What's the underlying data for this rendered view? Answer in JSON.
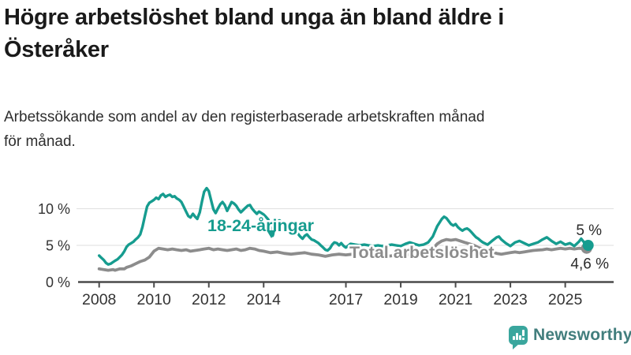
{
  "header": {
    "title_line1": "Högre arbetslöshet bland unga än bland äldre i",
    "title_line2": "Österåker",
    "subtitle_line1": "Arbetssökande som andel av den registerbaserade arbetskraften månad",
    "subtitle_line2": "för månad."
  },
  "footer": {
    "brand": "Newsworthy"
  },
  "colors": {
    "youth": "#169c8f",
    "total": "#8c8c8c",
    "axis": "#4a4a4a",
    "grid": "#e3e3e3",
    "tick_text": "#333333",
    "brand_icon": "#3aa69d",
    "brand_text": "#427e7d"
  },
  "chart_data": {
    "type": "line",
    "title": "Högre arbetslöshet bland unga än bland äldre i Österåker",
    "subtitle": "Arbetssökande som andel av den registerbaserade arbetskraften månad för månad.",
    "unit": "%",
    "grid": "horizontal-only",
    "legend_position": "inline-labels",
    "xlim": [
      2008,
      2025.9
    ],
    "ylim": [
      0,
      13.5
    ],
    "x_ticks": [
      2008,
      2010,
      2012,
      2014,
      2017,
      2019,
      2021,
      2023,
      2025
    ],
    "y_ticks": [
      {
        "value": 0,
        "label": "0 %"
      },
      {
        "value": 5,
        "label": "5 %"
      },
      {
        "value": 10,
        "label": "10 %"
      }
    ],
    "series": [
      {
        "name": "18-24-åringar",
        "color": "#169c8f",
        "end_label": "5 %",
        "points": [
          [
            2008.0,
            3.6
          ],
          [
            2008.08,
            3.3
          ],
          [
            2008.17,
            3.0
          ],
          [
            2008.25,
            2.6
          ],
          [
            2008.33,
            2.4
          ],
          [
            2008.42,
            2.5
          ],
          [
            2008.5,
            2.7
          ],
          [
            2008.58,
            2.9
          ],
          [
            2008.67,
            3.1
          ],
          [
            2008.75,
            3.4
          ],
          [
            2008.83,
            3.7
          ],
          [
            2008.92,
            4.2
          ],
          [
            2009.0,
            4.8
          ],
          [
            2009.08,
            5.1
          ],
          [
            2009.17,
            5.3
          ],
          [
            2009.25,
            5.5
          ],
          [
            2009.33,
            5.8
          ],
          [
            2009.42,
            6.1
          ],
          [
            2009.5,
            6.5
          ],
          [
            2009.58,
            7.5
          ],
          [
            2009.67,
            9.0
          ],
          [
            2009.75,
            10.3
          ],
          [
            2009.83,
            10.8
          ],
          [
            2009.92,
            11.0
          ],
          [
            2010.0,
            11.2
          ],
          [
            2010.08,
            11.5
          ],
          [
            2010.17,
            11.3
          ],
          [
            2010.25,
            11.8
          ],
          [
            2010.33,
            12.0
          ],
          [
            2010.42,
            11.6
          ],
          [
            2010.5,
            11.8
          ],
          [
            2010.58,
            11.9
          ],
          [
            2010.67,
            11.6
          ],
          [
            2010.75,
            11.7
          ],
          [
            2010.83,
            11.4
          ],
          [
            2010.92,
            11.2
          ],
          [
            2011.0,
            10.9
          ],
          [
            2011.08,
            10.3
          ],
          [
            2011.17,
            9.6
          ],
          [
            2011.25,
            9.0
          ],
          [
            2011.33,
            8.8
          ],
          [
            2011.42,
            9.3
          ],
          [
            2011.5,
            8.9
          ],
          [
            2011.58,
            8.6
          ],
          [
            2011.67,
            9.5
          ],
          [
            2011.75,
            11.0
          ],
          [
            2011.83,
            12.3
          ],
          [
            2011.92,
            12.8
          ],
          [
            2012.0,
            12.4
          ],
          [
            2012.08,
            11.2
          ],
          [
            2012.17,
            9.9
          ],
          [
            2012.25,
            9.4
          ],
          [
            2012.33,
            10.0
          ],
          [
            2012.42,
            10.6
          ],
          [
            2012.5,
            10.9
          ],
          [
            2012.58,
            10.5
          ],
          [
            2012.67,
            9.7
          ],
          [
            2012.75,
            10.3
          ],
          [
            2012.83,
            10.9
          ],
          [
            2012.92,
            10.7
          ],
          [
            2013.0,
            10.4
          ],
          [
            2013.08,
            9.9
          ],
          [
            2013.17,
            9.5
          ],
          [
            2013.25,
            9.8
          ],
          [
            2013.33,
            10.1
          ],
          [
            2013.42,
            10.4
          ],
          [
            2013.5,
            10.5
          ],
          [
            2013.58,
            10.0
          ],
          [
            2013.67,
            9.6
          ],
          [
            2013.75,
            9.3
          ],
          [
            2013.83,
            9.6
          ],
          [
            2013.92,
            9.4
          ],
          [
            2014.0,
            9.2
          ],
          [
            2014.08,
            8.9
          ],
          [
            2014.17,
            8.5
          ],
          [
            2014.25,
            7.4
          ],
          [
            2014.33,
            6.3
          ],
          [
            2014.42,
            7.5
          ],
          [
            2014.5,
            8.3
          ],
          [
            2014.58,
            8.4
          ],
          [
            2014.67,
            8.1
          ],
          [
            2014.75,
            7.8
          ],
          [
            2014.83,
            7.5
          ],
          [
            2014.92,
            7.3
          ],
          [
            2015.0,
            7.1
          ],
          [
            2015.08,
            6.9
          ],
          [
            2015.17,
            6.7
          ],
          [
            2015.25,
            6.6
          ],
          [
            2015.33,
            6.2
          ],
          [
            2015.42,
            5.9
          ],
          [
            2015.5,
            6.3
          ],
          [
            2015.58,
            6.5
          ],
          [
            2015.67,
            6.1
          ],
          [
            2015.75,
            5.8
          ],
          [
            2015.83,
            5.7
          ],
          [
            2015.92,
            5.5
          ],
          [
            2016.0,
            5.3
          ],
          [
            2016.08,
            5.0
          ],
          [
            2016.17,
            4.7
          ],
          [
            2016.25,
            4.4
          ],
          [
            2016.33,
            4.3
          ],
          [
            2016.42,
            4.6
          ],
          [
            2016.5,
            5.1
          ],
          [
            2016.58,
            5.4
          ],
          [
            2016.67,
            5.3
          ],
          [
            2016.75,
            5.0
          ],
          [
            2016.83,
            5.3
          ],
          [
            2016.92,
            4.9
          ],
          [
            2017.0,
            4.7
          ],
          [
            2017.17,
            5.2
          ],
          [
            2017.33,
            5.1
          ],
          [
            2017.5,
            5.0
          ],
          [
            2017.67,
            5.1
          ],
          [
            2017.83,
            5.0
          ],
          [
            2018.0,
            4.9
          ],
          [
            2018.17,
            5.0
          ],
          [
            2018.33,
            4.9
          ],
          [
            2018.5,
            5.0
          ],
          [
            2018.67,
            5.1
          ],
          [
            2018.83,
            5.0
          ],
          [
            2019.0,
            4.9
          ],
          [
            2019.17,
            5.2
          ],
          [
            2019.33,
            5.4
          ],
          [
            2019.5,
            5.2
          ],
          [
            2019.67,
            5.0
          ],
          [
            2019.83,
            5.1
          ],
          [
            2020.0,
            5.4
          ],
          [
            2020.17,
            6.2
          ],
          [
            2020.33,
            7.6
          ],
          [
            2020.5,
            8.6
          ],
          [
            2020.58,
            8.9
          ],
          [
            2020.67,
            8.7
          ],
          [
            2020.75,
            8.3
          ],
          [
            2020.83,
            7.9
          ],
          [
            2020.92,
            7.7
          ],
          [
            2021.0,
            7.9
          ],
          [
            2021.08,
            7.5
          ],
          [
            2021.17,
            7.2
          ],
          [
            2021.25,
            7.0
          ],
          [
            2021.33,
            7.2
          ],
          [
            2021.42,
            7.3
          ],
          [
            2021.5,
            7.1
          ],
          [
            2021.58,
            6.8
          ],
          [
            2021.67,
            6.4
          ],
          [
            2021.75,
            6.1
          ],
          [
            2021.83,
            5.9
          ],
          [
            2021.92,
            5.6
          ],
          [
            2022.0,
            5.4
          ],
          [
            2022.17,
            5.1
          ],
          [
            2022.33,
            5.6
          ],
          [
            2022.5,
            6.1
          ],
          [
            2022.58,
            6.2
          ],
          [
            2022.67,
            5.8
          ],
          [
            2022.83,
            5.3
          ],
          [
            2023.0,
            4.9
          ],
          [
            2023.17,
            5.4
          ],
          [
            2023.33,
            5.6
          ],
          [
            2023.5,
            5.3
          ],
          [
            2023.67,
            5.0
          ],
          [
            2023.83,
            5.2
          ],
          [
            2024.0,
            5.4
          ],
          [
            2024.17,
            5.8
          ],
          [
            2024.33,
            6.1
          ],
          [
            2024.5,
            5.6
          ],
          [
            2024.67,
            5.2
          ],
          [
            2024.83,
            5.5
          ],
          [
            2025.0,
            5.1
          ],
          [
            2025.17,
            5.3
          ],
          [
            2025.33,
            4.9
          ],
          [
            2025.5,
            5.5
          ],
          [
            2025.58,
            5.9
          ],
          [
            2025.67,
            5.5
          ],
          [
            2025.75,
            5.0
          ]
        ]
      },
      {
        "name": "Total arbetslöshet",
        "color": "#8c8c8c",
        "end_label": "4,6 %",
        "points": [
          [
            2008.0,
            1.8
          ],
          [
            2008.17,
            1.7
          ],
          [
            2008.33,
            1.6
          ],
          [
            2008.5,
            1.7
          ],
          [
            2008.58,
            1.6
          ],
          [
            2008.75,
            1.8
          ],
          [
            2008.92,
            1.8
          ],
          [
            2009.0,
            2.0
          ],
          [
            2009.17,
            2.2
          ],
          [
            2009.33,
            2.5
          ],
          [
            2009.5,
            2.8
          ],
          [
            2009.67,
            3.0
          ],
          [
            2009.83,
            3.4
          ],
          [
            2010.0,
            4.2
          ],
          [
            2010.17,
            4.6
          ],
          [
            2010.33,
            4.5
          ],
          [
            2010.5,
            4.4
          ],
          [
            2010.67,
            4.5
          ],
          [
            2010.83,
            4.4
          ],
          [
            2011.0,
            4.3
          ],
          [
            2011.17,
            4.4
          ],
          [
            2011.33,
            4.2
          ],
          [
            2011.5,
            4.3
          ],
          [
            2011.67,
            4.4
          ],
          [
            2011.83,
            4.5
          ],
          [
            2012.0,
            4.6
          ],
          [
            2012.17,
            4.4
          ],
          [
            2012.33,
            4.5
          ],
          [
            2012.5,
            4.4
          ],
          [
            2012.67,
            4.3
          ],
          [
            2012.83,
            4.4
          ],
          [
            2013.0,
            4.5
          ],
          [
            2013.17,
            4.3
          ],
          [
            2013.33,
            4.4
          ],
          [
            2013.5,
            4.6
          ],
          [
            2013.67,
            4.5
          ],
          [
            2013.83,
            4.3
          ],
          [
            2014.0,
            4.2
          ],
          [
            2014.25,
            4.0
          ],
          [
            2014.5,
            4.1
          ],
          [
            2014.75,
            3.9
          ],
          [
            2015.0,
            3.8
          ],
          [
            2015.25,
            3.9
          ],
          [
            2015.5,
            4.0
          ],
          [
            2015.75,
            3.8
          ],
          [
            2016.0,
            3.7
          ],
          [
            2016.25,
            3.5
          ],
          [
            2016.5,
            3.7
          ],
          [
            2016.75,
            3.8
          ],
          [
            2017.0,
            3.7
          ],
          [
            2017.25,
            3.8
          ],
          [
            2017.5,
            3.7
          ],
          [
            2017.75,
            3.6
          ],
          [
            2018.0,
            3.5
          ],
          [
            2018.25,
            3.6
          ],
          [
            2018.5,
            3.5
          ],
          [
            2018.75,
            3.6
          ],
          [
            2019.0,
            3.6
          ],
          [
            2019.25,
            3.7
          ],
          [
            2019.5,
            3.8
          ],
          [
            2019.75,
            3.9
          ],
          [
            2020.0,
            4.0
          ],
          [
            2020.17,
            4.5
          ],
          [
            2020.33,
            5.2
          ],
          [
            2020.5,
            5.6
          ],
          [
            2020.67,
            5.8
          ],
          [
            2020.83,
            5.7
          ],
          [
            2021.0,
            5.8
          ],
          [
            2021.17,
            5.6
          ],
          [
            2021.33,
            5.4
          ],
          [
            2021.5,
            5.2
          ],
          [
            2021.67,
            5.0
          ],
          [
            2021.83,
            4.7
          ],
          [
            2022.0,
            4.5
          ],
          [
            2022.17,
            4.3
          ],
          [
            2022.33,
            4.1
          ],
          [
            2022.5,
            3.9
          ],
          [
            2022.67,
            3.8
          ],
          [
            2022.83,
            3.9
          ],
          [
            2023.0,
            4.0
          ],
          [
            2023.17,
            4.1
          ],
          [
            2023.33,
            4.0
          ],
          [
            2023.5,
            4.1
          ],
          [
            2023.67,
            4.2
          ],
          [
            2023.83,
            4.3
          ],
          [
            2024.0,
            4.35
          ],
          [
            2024.17,
            4.4
          ],
          [
            2024.33,
            4.5
          ],
          [
            2024.5,
            4.4
          ],
          [
            2024.67,
            4.5
          ],
          [
            2024.83,
            4.6
          ],
          [
            2025.0,
            4.5
          ],
          [
            2025.17,
            4.6
          ],
          [
            2025.33,
            4.5
          ],
          [
            2025.5,
            4.6
          ],
          [
            2025.67,
            4.55
          ],
          [
            2025.75,
            4.6
          ]
        ]
      }
    ]
  }
}
